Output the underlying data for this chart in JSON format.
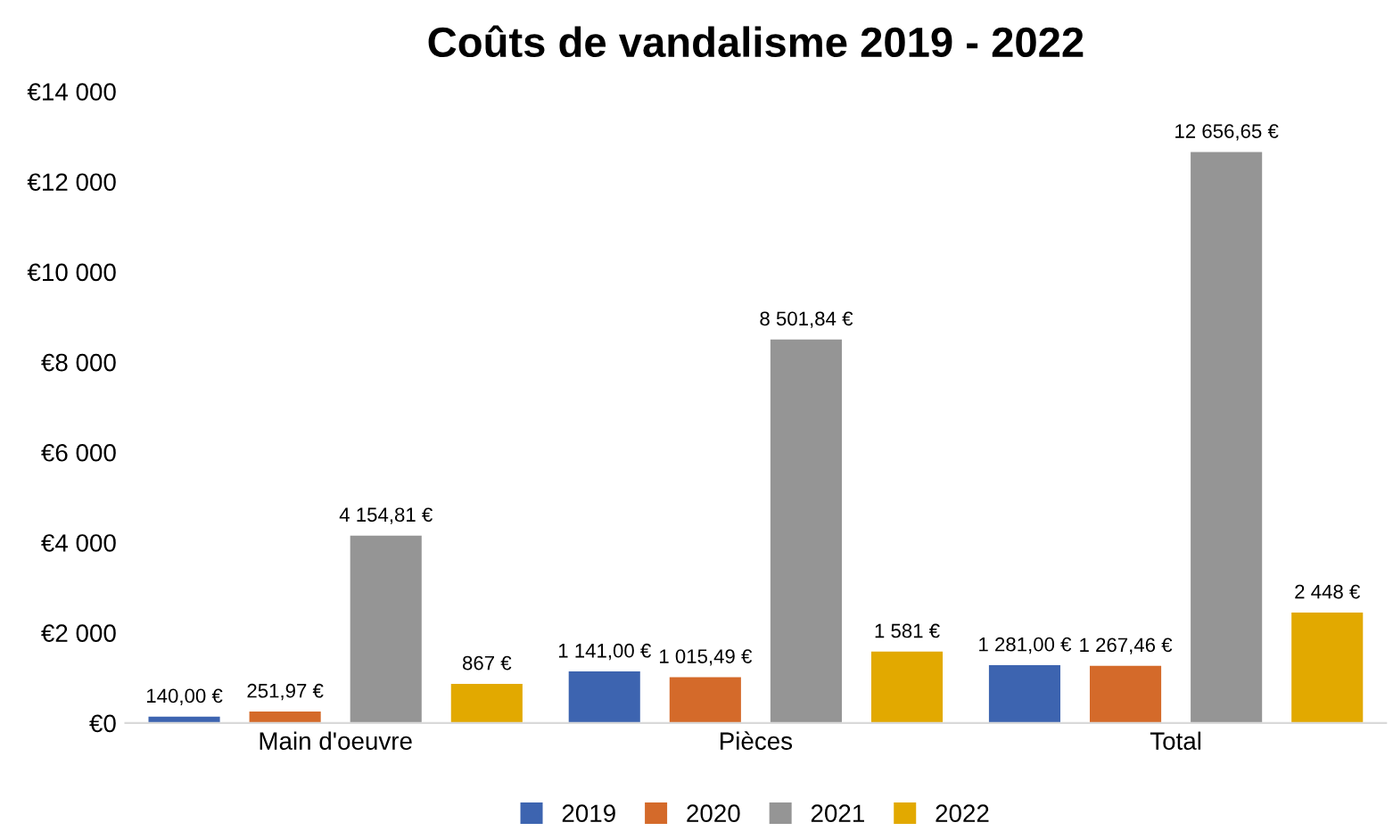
{
  "chart_data": {
    "type": "bar",
    "title": "Coûts de vandalisme 2019 - 2022",
    "categories": [
      "Main d'oeuvre",
      "Pièces",
      "Total"
    ],
    "series": [
      {
        "name": "2019",
        "color": "#3d64b0",
        "values": [
          140.0,
          1141.0,
          1281.0
        ],
        "value_labels": [
          "140,00 €",
          "1 141,00 €",
          "1 281,00 €"
        ]
      },
      {
        "name": "2020",
        "color": "#d46a2a",
        "values": [
          251.97,
          1015.49,
          1267.46
        ],
        "value_labels": [
          "251,97 €",
          "1 015,49 €",
          "1 267,46 €"
        ]
      },
      {
        "name": "2021",
        "color": "#959595",
        "values": [
          4154.81,
          8501.84,
          12656.65
        ],
        "value_labels": [
          "4 154,81 €",
          "8 501,84 €",
          "12 656,65 €"
        ]
      },
      {
        "name": "2022",
        "color": "#e2a900",
        "values": [
          867,
          1581,
          2448
        ],
        "value_labels": [
          "867 €",
          "1 581 €",
          "2 448 €"
        ]
      }
    ],
    "ylim": [
      0,
      14000
    ],
    "yticks": [
      {
        "value": 0,
        "label": "€0"
      },
      {
        "value": 2000,
        "label": "€2 000"
      },
      {
        "value": 4000,
        "label": "€4 000"
      },
      {
        "value": 6000,
        "label": "€6 000"
      },
      {
        "value": 8000,
        "label": "€8 000"
      },
      {
        "value": 10000,
        "label": "€10 000"
      },
      {
        "value": 12000,
        "label": "€12 000"
      },
      {
        "value": 14000,
        "label": "€14 000"
      }
    ],
    "grid": false,
    "legend": "bottom"
  }
}
